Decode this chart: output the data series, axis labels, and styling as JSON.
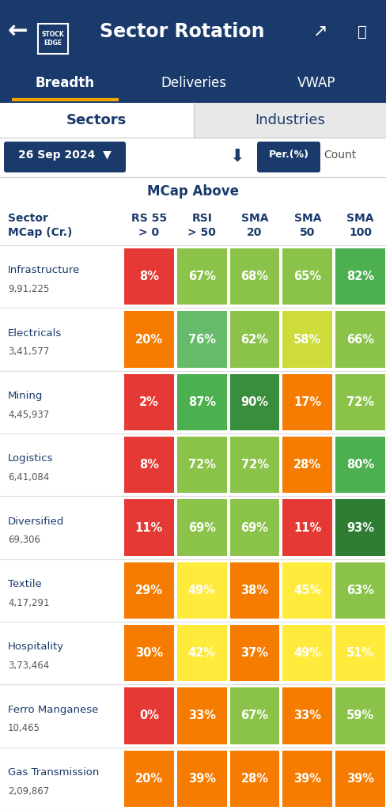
{
  "title": "Sector Rotation",
  "tab_active": "Breadth",
  "tab_inactive": [
    "Deliveries",
    "VWAP"
  ],
  "subtab_active": "Sectors",
  "subtab_inactive": "Industries",
  "date_label": "26 Sep 2024  ▼",
  "mcap_above_label": "MCap Above",
  "col_header_line1": [
    "Sector",
    "RS 55",
    "RSI",
    "SMA",
    "SMA",
    "SMA"
  ],
  "col_header_line2": [
    "MCap (Cr.)",
    "> 0",
    "> 50",
    "20",
    "50",
    "100"
  ],
  "sectors": [
    {
      "name": "Infrastructure",
      "mcap": "9,91,225"
    },
    {
      "name": "Electricals",
      "mcap": "3,41,577"
    },
    {
      "name": "Mining",
      "mcap": "4,45,937"
    },
    {
      "name": "Logistics",
      "mcap": "6,41,084"
    },
    {
      "name": "Diversified",
      "mcap": "69,306"
    },
    {
      "name": "Textile",
      "mcap": "4,17,291"
    },
    {
      "name": "Hospitality",
      "mcap": "3,73,464"
    },
    {
      "name": "Ferro Manganese",
      "mcap": "10,465"
    },
    {
      "name": "Gas Transmission",
      "mcap": "2,09,867"
    }
  ],
  "values": [
    [
      8,
      67,
      68,
      65,
      82
    ],
    [
      20,
      76,
      62,
      58,
      66
    ],
    [
      2,
      87,
      90,
      17,
      72
    ],
    [
      8,
      72,
      72,
      28,
      80
    ],
    [
      11,
      69,
      69,
      11,
      93
    ],
    [
      29,
      49,
      38,
      45,
      63
    ],
    [
      30,
      42,
      37,
      49,
      51
    ],
    [
      0,
      33,
      67,
      33,
      59
    ],
    [
      20,
      39,
      28,
      39,
      39
    ]
  ],
  "cell_colors": [
    [
      "#e53935",
      "#8bc34a",
      "#8bc34a",
      "#8bc34a",
      "#4caf50"
    ],
    [
      "#f57c00",
      "#66bb6a",
      "#8bc34a",
      "#cddc39",
      "#8bc34a"
    ],
    [
      "#e53935",
      "#4caf50",
      "#388e3c",
      "#f57c00",
      "#8bc34a"
    ],
    [
      "#e53935",
      "#8bc34a",
      "#8bc34a",
      "#f57c00",
      "#4caf50"
    ],
    [
      "#e53935",
      "#8bc34a",
      "#8bc34a",
      "#e53935",
      "#2e7d32"
    ],
    [
      "#f57c00",
      "#ffeb3b",
      "#f57c00",
      "#ffeb3b",
      "#8bc34a"
    ],
    [
      "#f57c00",
      "#ffeb3b",
      "#f57c00",
      "#ffeb3b",
      "#ffeb3b"
    ],
    [
      "#e53935",
      "#f57c00",
      "#8bc34a",
      "#f57c00",
      "#8bc34a"
    ],
    [
      "#f57c00",
      "#f57c00",
      "#f57c00",
      "#f57c00",
      "#f57c00"
    ]
  ],
  "header_bg": "#1a3a6b",
  "active_tab_underline": "#f0a500",
  "subtab_text": "#1a3a6b",
  "body_bg": "#ffffff",
  "column_header_color": "#1a3a6b",
  "sector_label_color": "#1a3a6b"
}
